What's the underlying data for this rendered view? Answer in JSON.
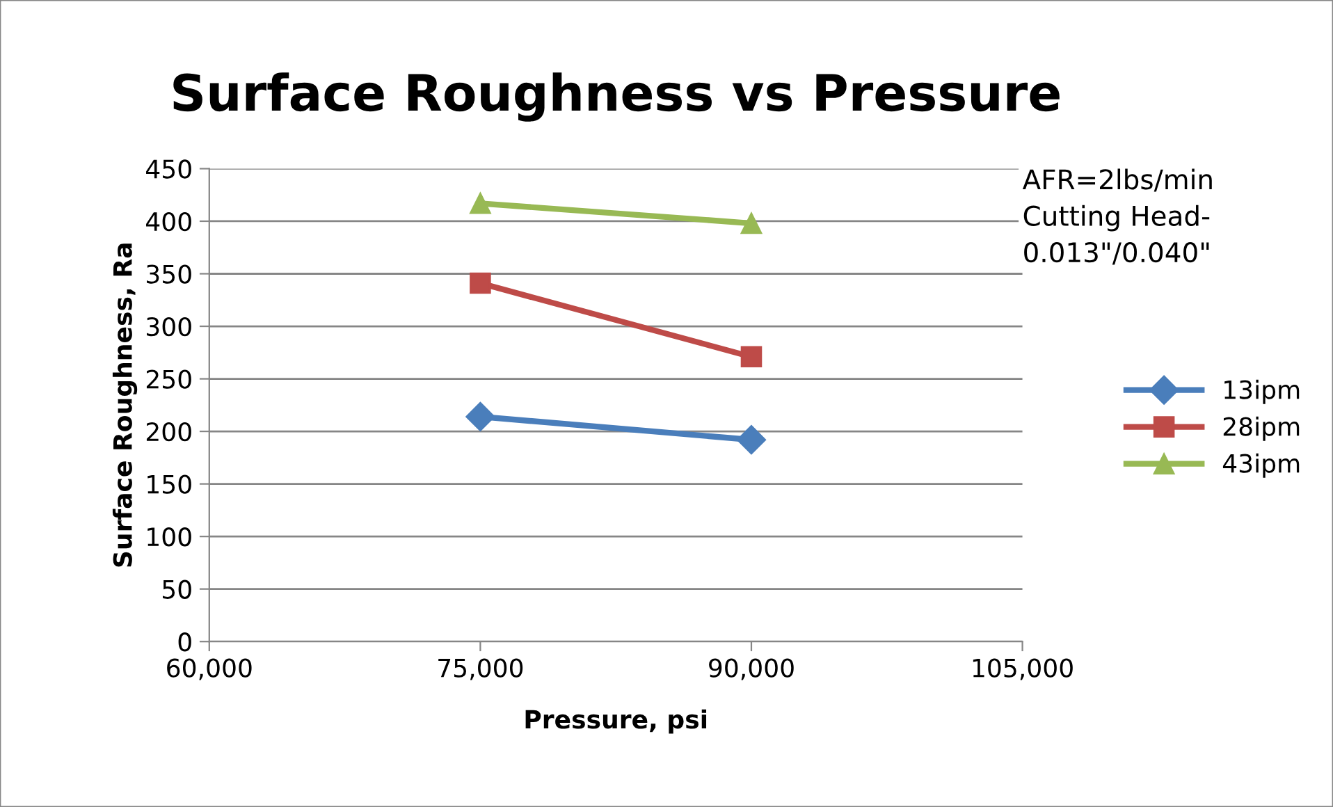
{
  "chart_data": {
    "type": "line",
    "title": "Surface Roughness vs Pressure",
    "xlabel": "Pressure, psi",
    "ylabel": "Surface Roughness, Ra",
    "x": [
      75000,
      90000
    ],
    "series": [
      {
        "name": "13ipm",
        "color": "#4a7ebb",
        "marker": "diamond",
        "values": [
          214,
          192
        ]
      },
      {
        "name": "28ipm",
        "color": "#be4b48",
        "marker": "square",
        "values": [
          341,
          271
        ]
      },
      {
        "name": "43ipm",
        "color": "#98b954",
        "marker": "triangle",
        "values": [
          417,
          398
        ]
      }
    ],
    "xlim": [
      60000,
      105000
    ],
    "xticks": [
      {
        "value": 60000,
        "label": "60,000"
      },
      {
        "value": 75000,
        "label": "75,000"
      },
      {
        "value": 90000,
        "label": "90,000"
      },
      {
        "value": 105000,
        "label": "105,000"
      }
    ],
    "ylim": [
      0,
      450
    ],
    "yticks": [
      0,
      50,
      100,
      150,
      200,
      250,
      300,
      350,
      400,
      450
    ],
    "grid": "y",
    "legend": "right",
    "line_style": "solid",
    "annotations": [
      "AFR=2lbs/min\nCutting Head-\n0.013\"/0.040\""
    ]
  }
}
